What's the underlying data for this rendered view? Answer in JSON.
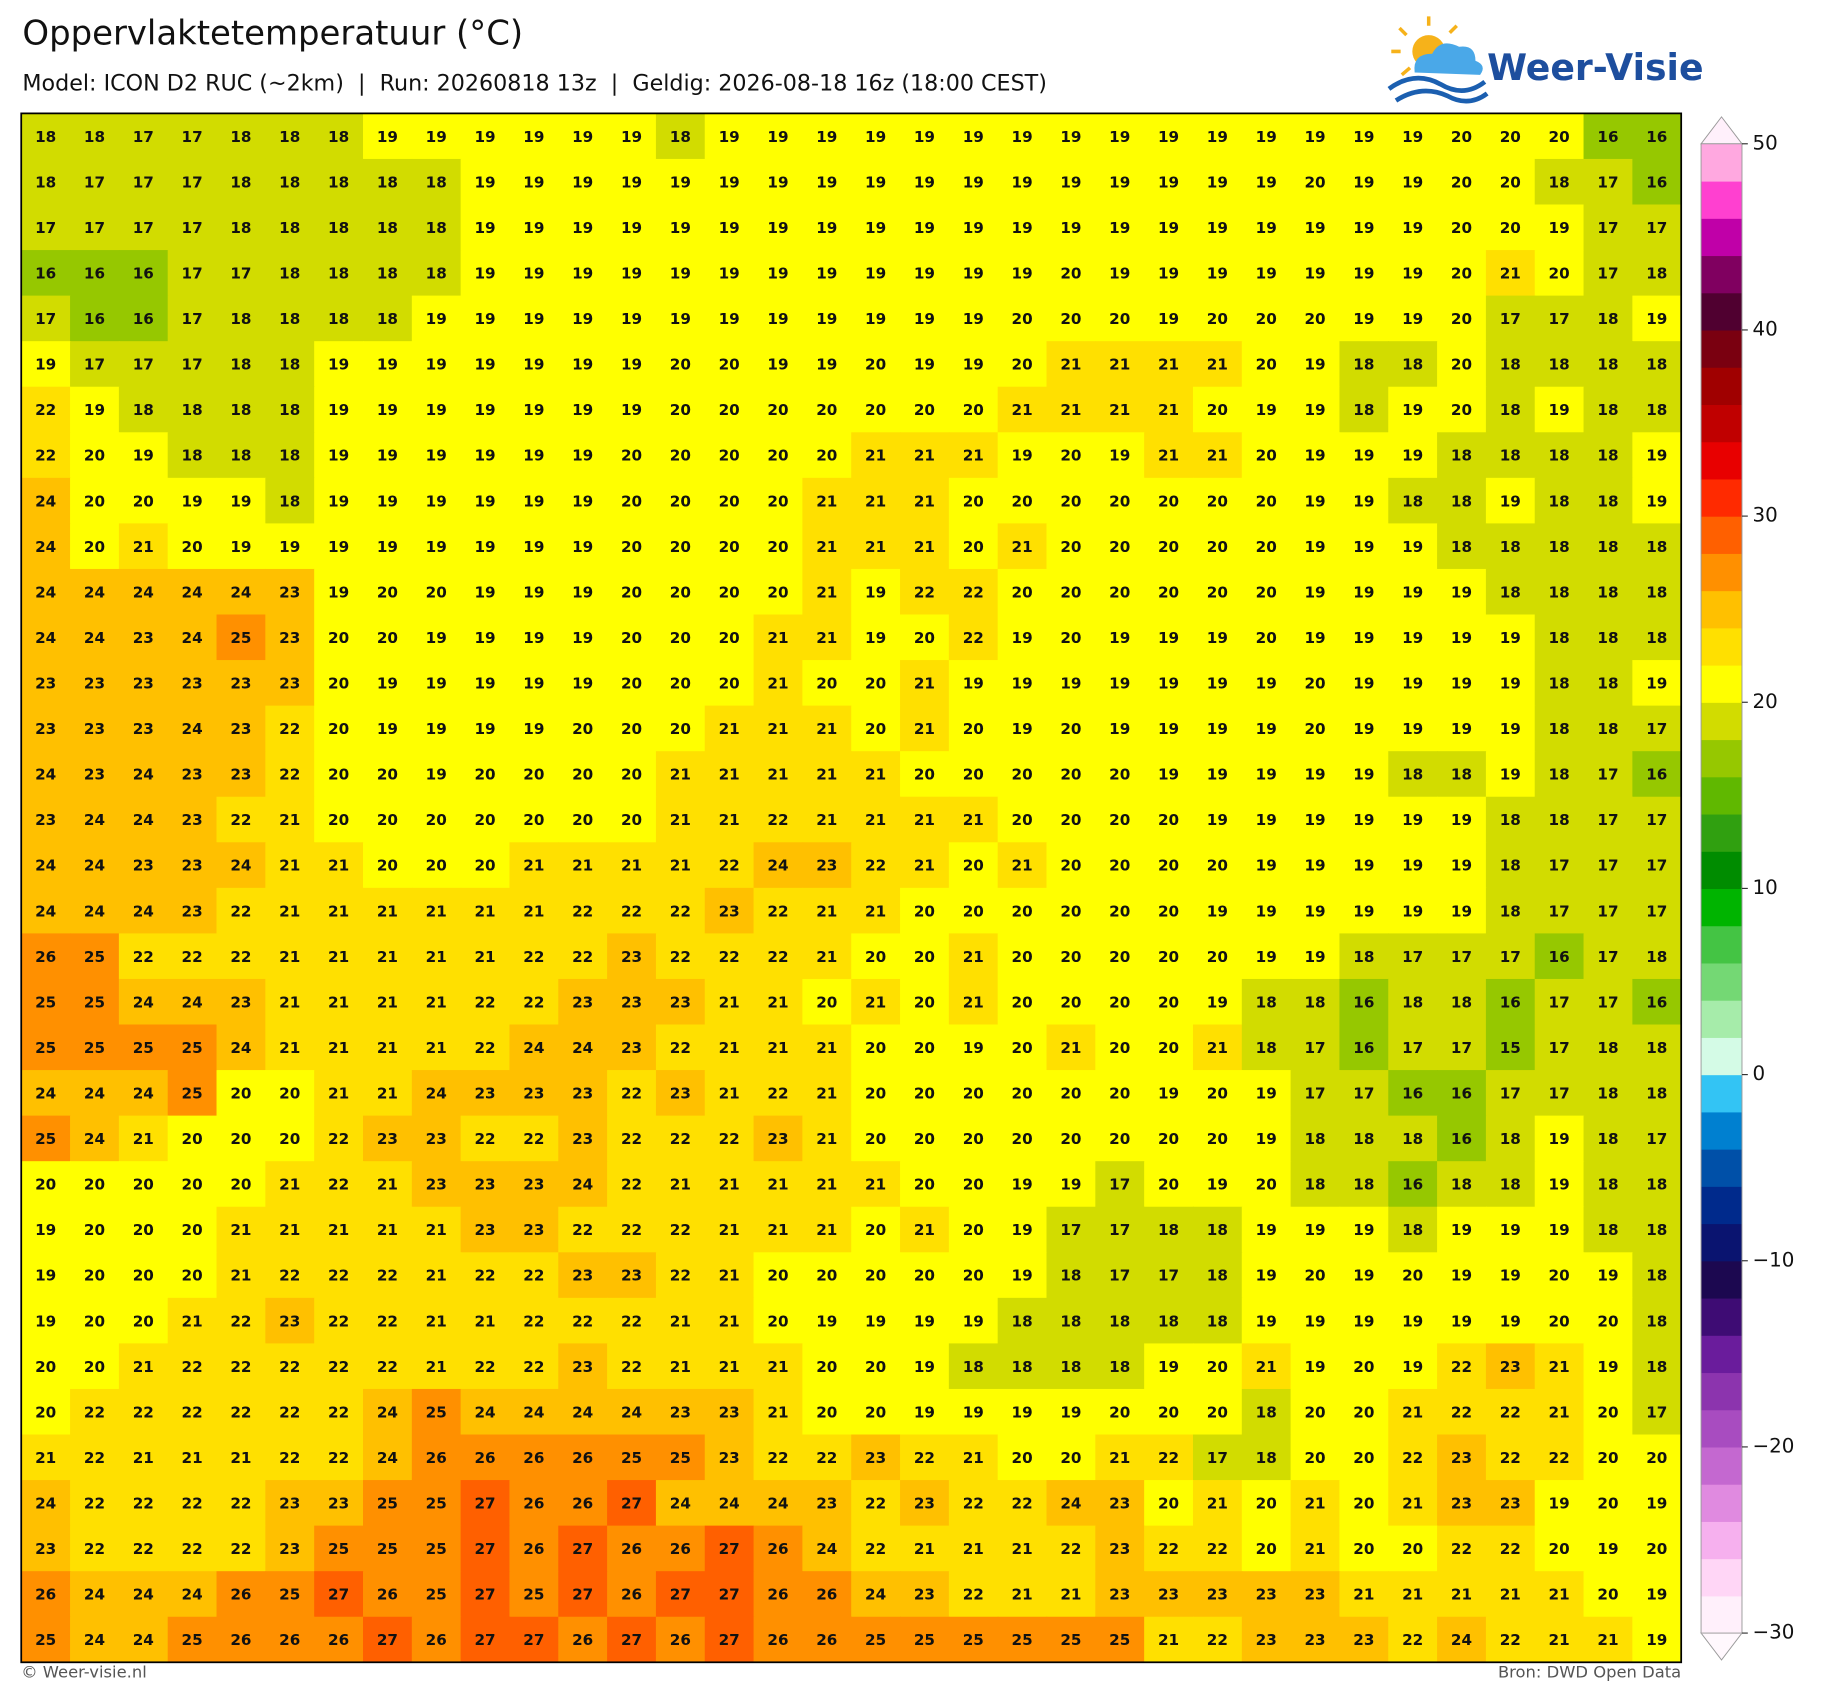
{
  "chart_data": {
    "type": "heatmap",
    "title": "Oppervlaktetemperatuur (°C)",
    "subtitle": "Model: ICON D2 RUC (~2km)  |  Run: 20260818 13z  |  Geldig: 2026-08-18 16z (18:00 CEST)",
    "logo": "Weer-Visie",
    "credit": "© Weer-visie.nl",
    "source": "Bron: DWD Open Data",
    "values": [
      [
        18,
        18,
        17,
        17,
        18,
        18,
        18,
        19,
        19,
        19,
        19,
        19,
        19,
        18,
        19,
        19,
        19,
        19,
        19,
        19,
        19,
        19,
        19,
        19,
        19,
        19,
        19,
        19,
        19,
        20,
        20,
        20,
        16,
        16
      ],
      [
        18,
        17,
        17,
        17,
        18,
        18,
        18,
        18,
        18,
        19,
        19,
        19,
        19,
        19,
        19,
        19,
        19,
        19,
        19,
        19,
        19,
        19,
        19,
        19,
        19,
        19,
        20,
        19,
        19,
        20,
        20,
        18,
        17,
        16
      ],
      [
        17,
        17,
        17,
        17,
        18,
        18,
        18,
        18,
        18,
        19,
        19,
        19,
        19,
        19,
        19,
        19,
        19,
        19,
        19,
        19,
        19,
        19,
        19,
        19,
        19,
        19,
        19,
        19,
        19,
        20,
        20,
        19,
        17,
        17
      ],
      [
        16,
        16,
        16,
        17,
        17,
        18,
        18,
        18,
        18,
        19,
        19,
        19,
        19,
        19,
        19,
        19,
        19,
        19,
        19,
        19,
        19,
        20,
        19,
        19,
        19,
        19,
        19,
        19,
        19,
        20,
        21,
        20,
        17,
        18
      ],
      [
        17,
        16,
        16,
        17,
        18,
        18,
        18,
        18,
        19,
        19,
        19,
        19,
        19,
        19,
        19,
        19,
        19,
        19,
        19,
        19,
        20,
        20,
        20,
        19,
        20,
        20,
        20,
        19,
        19,
        20,
        17,
        17,
        18,
        19
      ],
      [
        19,
        17,
        17,
        17,
        18,
        18,
        19,
        19,
        19,
        19,
        19,
        19,
        19,
        20,
        20,
        19,
        19,
        20,
        19,
        19,
        20,
        21,
        21,
        21,
        21,
        20,
        19,
        18,
        18,
        20,
        18,
        18,
        18,
        18
      ],
      [
        22,
        19,
        18,
        18,
        18,
        18,
        19,
        19,
        19,
        19,
        19,
        19,
        19,
        20,
        20,
        20,
        20,
        20,
        20,
        20,
        21,
        21,
        21,
        21,
        20,
        19,
        19,
        18,
        19,
        20,
        18,
        19,
        18,
        18
      ],
      [
        22,
        20,
        19,
        18,
        18,
        18,
        19,
        19,
        19,
        19,
        19,
        19,
        20,
        20,
        20,
        20,
        20,
        21,
        21,
        21,
        19,
        20,
        19,
        21,
        21,
        20,
        19,
        19,
        19,
        18,
        18,
        18,
        18,
        19
      ],
      [
        24,
        20,
        20,
        19,
        19,
        18,
        19,
        19,
        19,
        19,
        19,
        19,
        20,
        20,
        20,
        20,
        21,
        21,
        21,
        20,
        20,
        20,
        20,
        20,
        20,
        20,
        19,
        19,
        18,
        18,
        19,
        18,
        18,
        19
      ],
      [
        24,
        20,
        21,
        20,
        19,
        19,
        19,
        19,
        19,
        19,
        19,
        19,
        20,
        20,
        20,
        20,
        21,
        21,
        21,
        20,
        21,
        20,
        20,
        20,
        20,
        20,
        19,
        19,
        19,
        18,
        18,
        18,
        18,
        18
      ],
      [
        24,
        24,
        24,
        24,
        24,
        23,
        19,
        20,
        20,
        19,
        19,
        19,
        20,
        20,
        20,
        20,
        21,
        19,
        22,
        22,
        20,
        20,
        20,
        20,
        20,
        20,
        19,
        19,
        19,
        19,
        18,
        18,
        18,
        18
      ],
      [
        24,
        24,
        23,
        24,
        25,
        23,
        20,
        20,
        19,
        19,
        19,
        19,
        20,
        20,
        20,
        21,
        21,
        19,
        20,
        22,
        19,
        20,
        19,
        19,
        19,
        20,
        19,
        19,
        19,
        19,
        19,
        18,
        18,
        18
      ],
      [
        23,
        23,
        23,
        23,
        23,
        23,
        20,
        19,
        19,
        19,
        19,
        19,
        20,
        20,
        20,
        21,
        20,
        20,
        21,
        19,
        19,
        19,
        19,
        19,
        19,
        19,
        20,
        19,
        19,
        19,
        19,
        18,
        18,
        19
      ],
      [
        23,
        23,
        23,
        24,
        23,
        22,
        20,
        19,
        19,
        19,
        19,
        20,
        20,
        20,
        21,
        21,
        21,
        20,
        21,
        20,
        19,
        20,
        19,
        19,
        19,
        19,
        20,
        19,
        19,
        19,
        19,
        18,
        18,
        17
      ],
      [
        24,
        23,
        24,
        23,
        23,
        22,
        20,
        20,
        19,
        20,
        20,
        20,
        20,
        21,
        21,
        21,
        21,
        21,
        20,
        20,
        20,
        20,
        20,
        19,
        19,
        19,
        19,
        19,
        18,
        18,
        19,
        18,
        17,
        16
      ],
      [
        23,
        24,
        24,
        23,
        22,
        21,
        20,
        20,
        20,
        20,
        20,
        20,
        20,
        21,
        21,
        22,
        21,
        21,
        21,
        21,
        20,
        20,
        20,
        20,
        19,
        19,
        19,
        19,
        19,
        19,
        18,
        18,
        17,
        17
      ],
      [
        24,
        24,
        23,
        23,
        24,
        21,
        21,
        20,
        20,
        20,
        21,
        21,
        21,
        21,
        22,
        24,
        23,
        22,
        21,
        20,
        21,
        20,
        20,
        20,
        20,
        19,
        19,
        19,
        19,
        19,
        18,
        17,
        17,
        17
      ],
      [
        24,
        24,
        24,
        23,
        22,
        21,
        21,
        21,
        21,
        21,
        21,
        22,
        22,
        22,
        23,
        22,
        21,
        21,
        20,
        20,
        20,
        20,
        20,
        20,
        19,
        19,
        19,
        19,
        19,
        19,
        18,
        17,
        17,
        17
      ],
      [
        26,
        25,
        22,
        22,
        22,
        21,
        21,
        21,
        21,
        21,
        22,
        22,
        23,
        22,
        22,
        22,
        21,
        20,
        20,
        21,
        20,
        20,
        20,
        20,
        20,
        19,
        19,
        18,
        17,
        17,
        17,
        16,
        17,
        18
      ],
      [
        25,
        25,
        24,
        24,
        23,
        21,
        21,
        21,
        21,
        22,
        22,
        23,
        23,
        23,
        21,
        21,
        20,
        21,
        20,
        21,
        20,
        20,
        20,
        20,
        19,
        18,
        18,
        16,
        18,
        18,
        16,
        17,
        17,
        16
      ],
      [
        25,
        25,
        25,
        25,
        24,
        21,
        21,
        21,
        21,
        22,
        24,
        24,
        23,
        22,
        21,
        21,
        21,
        20,
        20,
        19,
        20,
        21,
        20,
        20,
        21,
        18,
        17,
        16,
        17,
        17,
        15,
        17,
        18,
        18
      ],
      [
        24,
        24,
        24,
        25,
        20,
        20,
        21,
        21,
        24,
        23,
        23,
        23,
        22,
        23,
        21,
        22,
        21,
        20,
        20,
        20,
        20,
        20,
        20,
        19,
        20,
        19,
        17,
        17,
        16,
        16,
        17,
        17,
        18,
        18
      ],
      [
        25,
        24,
        21,
        20,
        20,
        20,
        22,
        23,
        23,
        22,
        22,
        23,
        22,
        22,
        22,
        23,
        21,
        20,
        20,
        20,
        20,
        20,
        20,
        20,
        20,
        19,
        18,
        18,
        18,
        16,
        18,
        19,
        18,
        17
      ],
      [
        20,
        20,
        20,
        20,
        20,
        21,
        22,
        21,
        23,
        23,
        23,
        24,
        22,
        21,
        21,
        21,
        21,
        21,
        20,
        20,
        19,
        19,
        17,
        20,
        19,
        20,
        18,
        18,
        16,
        18,
        18,
        19,
        18,
        18
      ],
      [
        19,
        20,
        20,
        20,
        21,
        21,
        21,
        21,
        21,
        23,
        23,
        22,
        22,
        22,
        21,
        21,
        21,
        20,
        21,
        20,
        19,
        17,
        17,
        18,
        18,
        19,
        19,
        19,
        18,
        19,
        19,
        19,
        18,
        18
      ],
      [
        19,
        20,
        20,
        20,
        21,
        22,
        22,
        22,
        21,
        22,
        22,
        23,
        23,
        22,
        21,
        20,
        20,
        20,
        20,
        20,
        19,
        18,
        17,
        17,
        18,
        19,
        20,
        19,
        20,
        19,
        19,
        20,
        19,
        18
      ],
      [
        19,
        20,
        20,
        21,
        22,
        23,
        22,
        22,
        21,
        21,
        22,
        22,
        22,
        21,
        21,
        20,
        19,
        19,
        19,
        19,
        18,
        18,
        18,
        18,
        18,
        19,
        19,
        19,
        19,
        19,
        19,
        20,
        20,
        18
      ],
      [
        20,
        20,
        21,
        22,
        22,
        22,
        22,
        22,
        21,
        22,
        22,
        23,
        22,
        21,
        21,
        21,
        20,
        20,
        19,
        18,
        18,
        18,
        18,
        19,
        20,
        21,
        19,
        20,
        19,
        22,
        23,
        21,
        19,
        18
      ],
      [
        20,
        22,
        22,
        22,
        22,
        22,
        22,
        24,
        25,
        24,
        24,
        24,
        24,
        23,
        23,
        21,
        20,
        20,
        19,
        19,
        19,
        19,
        20,
        20,
        20,
        18,
        20,
        20,
        21,
        22,
        22,
        21,
        20,
        17
      ],
      [
        21,
        22,
        21,
        21,
        21,
        22,
        22,
        24,
        26,
        26,
        26,
        26,
        25,
        25,
        23,
        22,
        22,
        23,
        22,
        21,
        20,
        20,
        21,
        22,
        17,
        18,
        20,
        20,
        22,
        23,
        22,
        22,
        20,
        20
      ],
      [
        24,
        22,
        22,
        22,
        22,
        23,
        23,
        25,
        25,
        27,
        26,
        26,
        27,
        24,
        24,
        24,
        23,
        22,
        23,
        22,
        22,
        24,
        23,
        20,
        21,
        20,
        21,
        20,
        21,
        23,
        23,
        19,
        20,
        19
      ],
      [
        23,
        22,
        22,
        22,
        22,
        23,
        25,
        25,
        25,
        27,
        26,
        27,
        26,
        26,
        27,
        26,
        24,
        22,
        21,
        21,
        21,
        22,
        23,
        22,
        22,
        20,
        21,
        20,
        20,
        22,
        22,
        20,
        19,
        20
      ],
      [
        26,
        24,
        24,
        24,
        26,
        25,
        27,
        26,
        25,
        27,
        25,
        27,
        26,
        27,
        27,
        26,
        26,
        24,
        23,
        22,
        21,
        21,
        23,
        23,
        23,
        23,
        23,
        21,
        21,
        21,
        21,
        21,
        20,
        19
      ],
      [
        25,
        24,
        24,
        25,
        26,
        26,
        26,
        27,
        26,
        27,
        27,
        26,
        27,
        26,
        27,
        26,
        26,
        25,
        25,
        25,
        25,
        25,
        25,
        21,
        22,
        23,
        23,
        23,
        22,
        24,
        22,
        21,
        21,
        19
      ]
    ],
    "colorbar": {
      "lim": [
        -30,
        50
      ],
      "ticks": [
        50,
        40,
        30,
        20,
        10,
        0,
        {
          "value": -10,
          "label": "−10"
        },
        {
          "value": -20,
          "label": "−20"
        },
        {
          "value": -30,
          "label": "−30"
        }
      ],
      "colors": [
        "#fff0fb",
        "#ffd6f6",
        "#f6b0ee",
        "#e08ae0",
        "#c468d0",
        "#a84cc0",
        "#8c34ae",
        "#6a1c9c",
        "#3e0c74",
        "#1c0850",
        "#0a1470",
        "#002a8c",
        "#0050a8",
        "#0080d0",
        "#33c4f4",
        "#d4fbe6",
        "#a6ecaa",
        "#74d874",
        "#44c444",
        "#00b400",
        "#008c00",
        "#30a010",
        "#60b800",
        "#96c800",
        "#d2dc00",
        "#ffff00",
        "#ffe000",
        "#ffc000",
        "#ff9000",
        "#ff6000",
        "#ff2a00",
        "#e80000",
        "#c00000",
        "#a00000",
        "#7a0010",
        "#500030",
        "#800060",
        "#c000a8",
        "#ff40d0",
        "#ffa8e0"
      ]
    }
  }
}
